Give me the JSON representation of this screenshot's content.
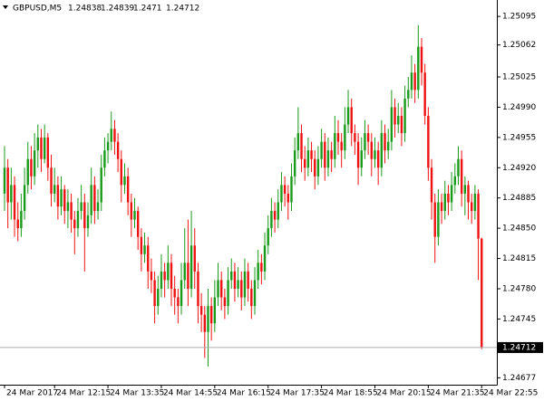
{
  "chart_data": {
    "type": "candlestick",
    "symbol": "GBPUSD,M5",
    "categories": [
      "24 Mar 2017",
      null,
      null,
      null,
      null,
      null,
      null,
      null,
      null,
      null,
      null,
      null,
      null,
      null,
      null,
      "24 Mar 12:15",
      null,
      null,
      null,
      null,
      null,
      null,
      null,
      null,
      null,
      null,
      null,
      null,
      null,
      null,
      null,
      "24 Mar 13:35",
      null,
      null,
      null,
      null,
      null,
      null,
      null,
      null,
      null,
      null,
      null,
      null,
      null,
      null,
      null,
      "24 Mar 14:55",
      null,
      null,
      null,
      null,
      null,
      null,
      null,
      null,
      null,
      null,
      null,
      null,
      null,
      null,
      null,
      "24 Mar 16:15",
      null,
      null,
      null,
      null,
      null,
      null,
      null,
      null,
      null,
      null,
      null,
      null,
      null,
      null,
      null,
      "24 Mar 17:35",
      null,
      null,
      null,
      null,
      null,
      null,
      null,
      null,
      null,
      null,
      null,
      null,
      null,
      null,
      null,
      "24 Mar 18:55",
      null,
      null,
      null,
      null,
      null,
      null,
      null,
      null,
      null,
      null,
      null,
      null,
      null,
      null,
      null,
      "24 Mar 20:15",
      null,
      null,
      null,
      null,
      null,
      null,
      null,
      null,
      null,
      null,
      null,
      null,
      null,
      null,
      null,
      "24 Mar 21:35",
      null,
      null,
      null,
      null,
      null,
      null,
      null,
      null,
      null,
      null,
      null,
      null,
      null,
      null,
      null,
      "24 Mar 22:55"
    ],
    "candles": [
      [
        1.2489,
        1.24945,
        1.2487,
        1.2492
      ],
      [
        1.2492,
        1.2493,
        1.2485,
        1.2488
      ],
      [
        1.2488,
        1.2492,
        1.2486,
        1.249
      ],
      [
        1.249,
        1.2491,
        1.2484,
        1.2486
      ],
      [
        1.2486,
        1.2488,
        1.24835,
        1.2485
      ],
      [
        1.2485,
        1.2489,
        1.2484,
        1.2487
      ],
      [
        1.2487,
        1.2492,
        1.2486,
        1.249
      ],
      [
        1.249,
        1.2495,
        1.2489,
        1.2493
      ],
      [
        1.2493,
        1.24945,
        1.24895,
        1.2491
      ],
      [
        1.2491,
        1.2496,
        1.249,
        1.2494
      ],
      [
        1.2494,
        1.2497,
        1.2492,
        1.24955
      ],
      [
        1.24955,
        1.24965,
        1.24915,
        1.2493
      ],
      [
        1.2493,
        1.2497,
        1.24925,
        1.24955
      ],
      [
        1.24955,
        1.2496,
        1.24905,
        1.2492
      ],
      [
        1.2492,
        1.24935,
        1.24875,
        1.2489
      ],
      [
        1.2489,
        1.2492,
        1.2488,
        1.249
      ],
      [
        1.249,
        1.2491,
        1.2486,
        1.24875
      ],
      [
        1.24875,
        1.2491,
        1.24865,
        1.24895
      ],
      [
        1.24895,
        1.249,
        1.24855,
        1.2487
      ],
      [
        1.2487,
        1.24895,
        1.2485,
        1.2488
      ],
      [
        1.2488,
        1.2489,
        1.24845,
        1.2486
      ],
      [
        1.2486,
        1.2487,
        1.2482,
        1.2485
      ],
      [
        1.2485,
        1.24885,
        1.2484,
        1.2487
      ],
      [
        1.2487,
        1.249,
        1.2486,
        1.2488
      ],
      [
        1.2488,
        1.2489,
        1.248,
        1.2485
      ],
      [
        1.2485,
        1.2488,
        1.2484,
        1.24865
      ],
      [
        1.24865,
        1.2492,
        1.24855,
        1.249
      ],
      [
        1.249,
        1.2491,
        1.24855,
        1.2487
      ],
      [
        1.2487,
        1.24895,
        1.2486,
        1.2488
      ],
      [
        1.2488,
        1.24935,
        1.2487,
        1.2492
      ],
      [
        1.2492,
        1.24955,
        1.2491,
        1.2494
      ],
      [
        1.2494,
        1.2496,
        1.24925,
        1.2495
      ],
      [
        1.2495,
        1.24985,
        1.2494,
        1.24965
      ],
      [
        1.24965,
        1.24975,
        1.24935,
        1.2495
      ],
      [
        1.2495,
        1.2496,
        1.24915,
        1.2493
      ],
      [
        1.2493,
        1.2494,
        1.2488,
        1.249
      ],
      [
        1.249,
        1.24925,
        1.2489,
        1.2491
      ],
      [
        1.2491,
        1.2492,
        1.24865,
        1.2488
      ],
      [
        1.2488,
        1.2489,
        1.2484,
        1.2486
      ],
      [
        1.2486,
        1.24885,
        1.2485,
        1.2487
      ],
      [
        1.2487,
        1.24875,
        1.24825,
        1.2484
      ],
      [
        1.2484,
        1.2485,
        1.248,
        1.2482
      ],
      [
        1.2482,
        1.24845,
        1.2481,
        1.2483
      ],
      [
        1.2483,
        1.2484,
        1.2478,
        1.248
      ],
      [
        1.248,
        1.24815,
        1.24775,
        1.2479
      ],
      [
        1.2479,
        1.248,
        1.2474,
        1.2476
      ],
      [
        1.2476,
        1.24795,
        1.2475,
        1.2478
      ],
      [
        1.2478,
        1.2482,
        1.2477,
        1.248
      ],
      [
        1.248,
        1.2481,
        1.2477,
        1.2479
      ],
      [
        1.2479,
        1.2483,
        1.2478,
        1.2481
      ],
      [
        1.2481,
        1.2482,
        1.2476,
        1.2478
      ],
      [
        1.2478,
        1.24795,
        1.2475,
        1.2477
      ],
      [
        1.2477,
        1.2478,
        1.2474,
        1.2476
      ],
      [
        1.2476,
        1.2481,
        1.2475,
        1.2479
      ],
      [
        1.2479,
        1.2485,
        1.2478,
        1.2481
      ],
      [
        1.2481,
        1.2486,
        1.2476,
        1.2478
      ],
      [
        1.2478,
        1.2487,
        1.2477,
        1.2483
      ],
      [
        1.2483,
        1.2485,
        1.2478,
        1.248
      ],
      [
        1.248,
        1.2481,
        1.2474,
        1.2476
      ],
      [
        1.2476,
        1.24775,
        1.2473,
        1.2475
      ],
      [
        1.2475,
        1.2476,
        1.247,
        1.2473
      ],
      [
        1.2473,
        1.2478,
        1.2469,
        1.2476
      ],
      [
        1.2476,
        1.2477,
        1.2472,
        1.2474
      ],
      [
        1.2474,
        1.2479,
        1.2473,
        1.2477
      ],
      [
        1.2477,
        1.2481,
        1.2476,
        1.2479
      ],
      [
        1.2479,
        1.248,
        1.24755,
        1.2477
      ],
      [
        1.2477,
        1.2478,
        1.24745,
        1.2476
      ],
      [
        1.2476,
        1.24805,
        1.2475,
        1.2479
      ],
      [
        1.2479,
        1.24815,
        1.2478,
        1.248
      ],
      [
        1.248,
        1.2481,
        1.24765,
        1.2478
      ],
      [
        1.2478,
        1.24805,
        1.2477,
        1.2479
      ],
      [
        1.2479,
        1.248,
        1.24755,
        1.2477
      ],
      [
        1.2477,
        1.24815,
        1.2476,
        1.248
      ],
      [
        1.248,
        1.2481,
        1.24765,
        1.2478
      ],
      [
        1.2478,
        1.2479,
        1.24745,
        1.2476
      ],
      [
        1.2476,
        1.24805,
        1.2475,
        1.2479
      ],
      [
        1.2479,
        1.24825,
        1.2478,
        1.2481
      ],
      [
        1.2481,
        1.2482,
        1.24785,
        1.248
      ],
      [
        1.248,
        1.24845,
        1.2479,
        1.2483
      ],
      [
        1.2483,
        1.24865,
        1.2482,
        1.2485
      ],
      [
        1.2485,
        1.24885,
        1.2484,
        1.2487
      ],
      [
        1.2487,
        1.2488,
        1.24845,
        1.2486
      ],
      [
        1.2486,
        1.24895,
        1.2485,
        1.2488
      ],
      [
        1.2488,
        1.24915,
        1.2487,
        1.249
      ],
      [
        1.249,
        1.2491,
        1.24875,
        1.2489
      ],
      [
        1.2489,
        1.249,
        1.2486,
        1.2488
      ],
      [
        1.2488,
        1.24925,
        1.2487,
        1.2491
      ],
      [
        1.2491,
        1.24955,
        1.249,
        1.2494
      ],
      [
        1.2494,
        1.2499,
        1.2493,
        1.2496
      ],
      [
        1.2496,
        1.2497,
        1.24915,
        1.2493
      ],
      [
        1.2493,
        1.24945,
        1.24905,
        1.2492
      ],
      [
        1.2492,
        1.24955,
        1.2491,
        1.2494
      ],
      [
        1.2494,
        1.2495,
        1.24915,
        1.2493
      ],
      [
        1.2493,
        1.2494,
        1.24895,
        1.2491
      ],
      [
        1.2491,
        1.24945,
        1.249,
        1.2493
      ],
      [
        1.2493,
        1.24965,
        1.2492,
        1.2495
      ],
      [
        1.2495,
        1.2496,
        1.24905,
        1.2492
      ],
      [
        1.2492,
        1.24955,
        1.2491,
        1.2494
      ],
      [
        1.2494,
        1.2495,
        1.24915,
        1.2493
      ],
      [
        1.2493,
        1.2498,
        1.2492,
        1.2496
      ],
      [
        1.2496,
        1.24975,
        1.24935,
        1.2495
      ],
      [
        1.2495,
        1.2496,
        1.2492,
        1.2494
      ],
      [
        1.2494,
        1.2499,
        1.2493,
        1.2497
      ],
      [
        1.2497,
        1.2501,
        1.2496,
        1.2499
      ],
      [
        1.2499,
        1.25,
        1.24945,
        1.2496
      ],
      [
        1.2496,
        1.2497,
        1.24935,
        1.2495
      ],
      [
        1.2495,
        1.2496,
        1.249,
        1.2492
      ],
      [
        1.2492,
        1.24955,
        1.2491,
        1.2494
      ],
      [
        1.2494,
        1.24975,
        1.2493,
        1.2496
      ],
      [
        1.2496,
        1.2497,
        1.24935,
        1.2495
      ],
      [
        1.2495,
        1.2496,
        1.2491,
        1.2493
      ],
      [
        1.2493,
        1.24955,
        1.2492,
        1.2494
      ],
      [
        1.2494,
        1.2495,
        1.249,
        1.2492
      ],
      [
        1.2492,
        1.24975,
        1.2491,
        1.2496
      ],
      [
        1.2496,
        1.2497,
        1.24925,
        1.2494
      ],
      [
        1.2494,
        1.24965,
        1.2493,
        1.2495
      ],
      [
        1.2495,
        1.2501,
        1.2494,
        1.2499
      ],
      [
        1.2499,
        1.25,
        1.24955,
        1.2497
      ],
      [
        1.2497,
        1.24995,
        1.2496,
        1.2498
      ],
      [
        1.2498,
        1.2499,
        1.24945,
        1.2496
      ],
      [
        1.2496,
        1.25015,
        1.2495,
        1.25
      ],
      [
        1.25,
        1.25025,
        1.2499,
        1.2501
      ],
      [
        1.2501,
        1.2505,
        1.25,
        1.2503
      ],
      [
        1.2503,
        1.2504,
        1.24995,
        1.2501
      ],
      [
        1.2501,
        1.25085,
        1.25,
        1.2506
      ],
      [
        1.2506,
        1.2507,
        1.25015,
        1.2503
      ],
      [
        1.2503,
        1.2504,
        1.2497,
        1.2498
      ],
      [
        1.2498,
        1.2499,
        1.24905,
        1.2492
      ],
      [
        1.2492,
        1.2493,
        1.2486,
        1.2488
      ],
      [
        1.2488,
        1.2489,
        1.2481,
        1.2484
      ],
      [
        1.2484,
        1.24895,
        1.2483,
        1.2488
      ],
      [
        1.2488,
        1.2489,
        1.24855,
        1.2487
      ],
      [
        1.2487,
        1.24905,
        1.2486,
        1.2489
      ],
      [
        1.2489,
        1.249,
        1.24865,
        1.2488
      ],
      [
        1.2488,
        1.24915,
        1.2487,
        1.249
      ],
      [
        1.249,
        1.24925,
        1.2489,
        1.2491
      ],
      [
        1.2491,
        1.24945,
        1.249,
        1.2493
      ],
      [
        1.2493,
        1.2494,
        1.24875,
        1.2489
      ],
      [
        1.2489,
        1.2491,
        1.24865,
        1.249
      ],
      [
        1.249,
        1.24905,
        1.2486,
        1.2488
      ],
      [
        1.2488,
        1.2489,
        1.24855,
        1.2487
      ],
      [
        1.2487,
        1.249,
        1.2486,
        1.2489
      ],
      [
        1.2489,
        1.24895,
        1.2479,
        1.24838
      ],
      [
        1.24838,
        1.24839,
        1.2471,
        1.24712
      ]
    ],
    "up_color": "#1a9a1a",
    "down_color": "#ee1111",
    "ylim": [
      1.24669,
      1.25114
    ],
    "yticks": [
      1.25095,
      1.25062,
      {
        "value": 1.25025,
        "label": "1.25025"
      },
      {
        "value": 1.2499,
        "label": "1.24990"
      },
      1.24955,
      {
        "value": 1.2492,
        "label": "1.24920"
      },
      1.24885,
      {
        "value": 1.2485,
        "label": "1.24850"
      },
      1.24815,
      {
        "value": 1.2478,
        "label": "1.24780"
      },
      1.24745,
      1.24677
    ],
    "grid": false
  }
}
